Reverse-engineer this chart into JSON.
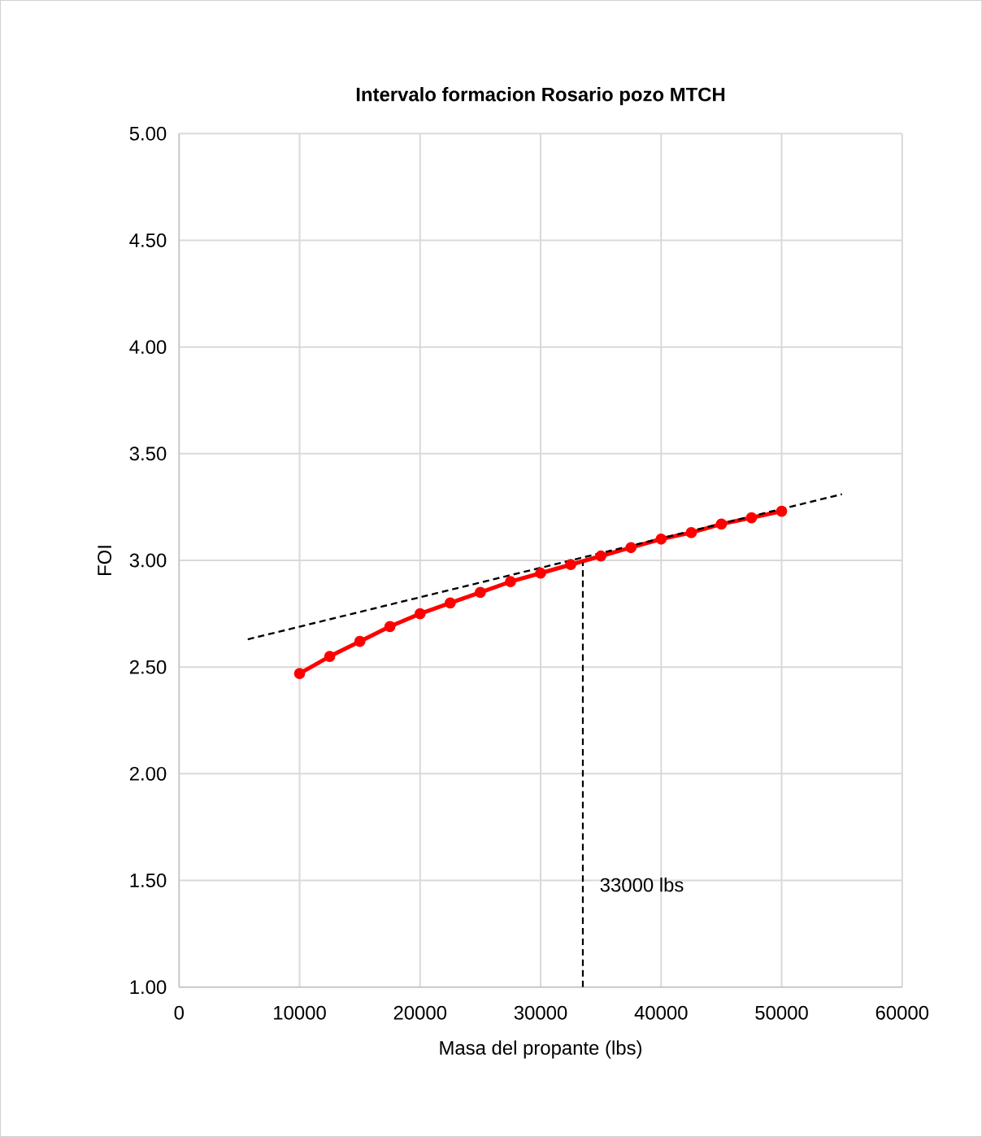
{
  "chart_data": {
    "type": "line",
    "title": "Intervalo formacion Rosario pozo MTCH",
    "xlabel": "Masa del propante (lbs)",
    "ylabel": "FOI",
    "x": [
      10000,
      12500,
      15000,
      17500,
      20000,
      22500,
      25000,
      27500,
      30000,
      32500,
      35000,
      37500,
      40000,
      42500,
      45000,
      47500,
      50000
    ],
    "series": [
      {
        "color": "#ff0000",
        "marker": "circle",
        "line_style": "solid",
        "values": [
          2.47,
          2.55,
          2.62,
          2.69,
          2.75,
          2.8,
          2.85,
          2.9,
          2.94,
          2.98,
          3.02,
          3.06,
          3.1,
          3.13,
          3.17,
          3.2,
          3.23
        ]
      },
      {
        "color": "#000000",
        "marker": "none",
        "line_style": "dashed",
        "x": [
          5700,
          55000
        ],
        "values": [
          2.63,
          3.31
        ]
      },
      {
        "color": "#000000",
        "marker": "none",
        "line_style": "dashed",
        "x": [
          33500,
          33500
        ],
        "values": [
          1.0,
          2.99
        ]
      }
    ],
    "annotations": [
      "33000 lbs"
    ],
    "xlim": [
      0,
      60000
    ],
    "xticks": [
      0,
      10000,
      20000,
      30000,
      40000,
      50000,
      60000
    ],
    "ylim": [
      1,
      5
    ],
    "yticks": [
      {
        "value": 1,
        "label": "1.00"
      },
      {
        "value": 1.5,
        "label": "1.50"
      },
      {
        "value": 2,
        "label": "2.00"
      },
      {
        "value": 2.5,
        "label": "2.50"
      },
      {
        "value": 3,
        "label": "3.00"
      },
      {
        "value": 3.5,
        "label": "3.50"
      },
      {
        "value": 4,
        "label": "4.00"
      },
      {
        "value": 4.5,
        "label": "4.50"
      },
      {
        "value": 5,
        "label": "5.00"
      }
    ],
    "grid": true
  }
}
